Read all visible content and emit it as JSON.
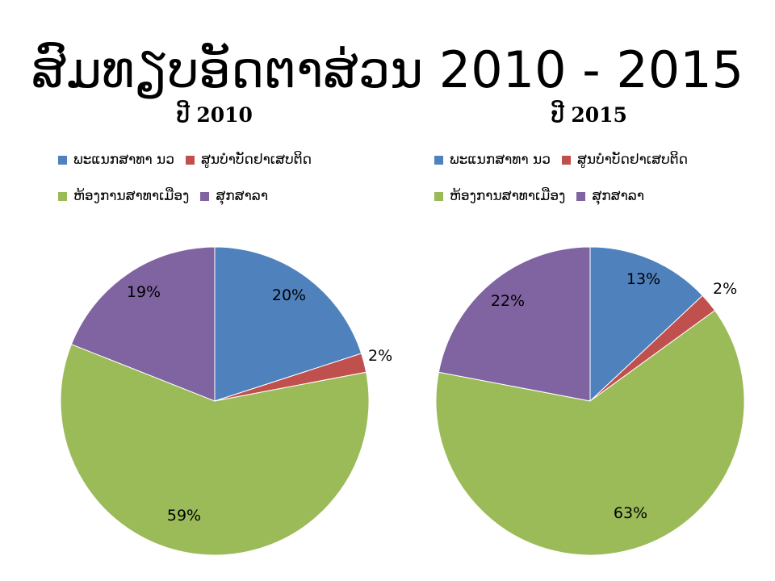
{
  "slide": {
    "title": "ສົມທຽບອັດຕາສ່ວນ 2010 - 2015"
  },
  "chart_data": [
    {
      "type": "pie",
      "title": "ປີ 2010",
      "categories": [
        "ພະແນກສາທາ ນວ",
        "ສູນບຳບັດຢາເສບຕິດ",
        "ຫ້ອງການສາທາເມືອງ",
        "ສຸກສາລາ"
      ],
      "values": [
        20,
        2,
        59,
        19
      ],
      "labels": [
        "20%",
        "2%",
        "59%",
        "19%"
      ],
      "colors": [
        "#4F81BD",
        "#C0504D",
        "#9BBB59",
        "#8064A2"
      ],
      "legend": "top"
    },
    {
      "type": "pie",
      "title": "ປີ 2015",
      "categories": [
        "ພະແນກສາທາ ນວ",
        "ສູນບຳບັດຢາເສບຕິດ",
        "ຫ້ອງການສາທາເມືອງ",
        "ສຸກສາລາ"
      ],
      "values": [
        13,
        2,
        63,
        22
      ],
      "labels": [
        "13%",
        "2%",
        "63%",
        "22%"
      ],
      "colors": [
        "#4F81BD",
        "#C0504D",
        "#9BBB59",
        "#8064A2"
      ],
      "legend": "top"
    }
  ]
}
